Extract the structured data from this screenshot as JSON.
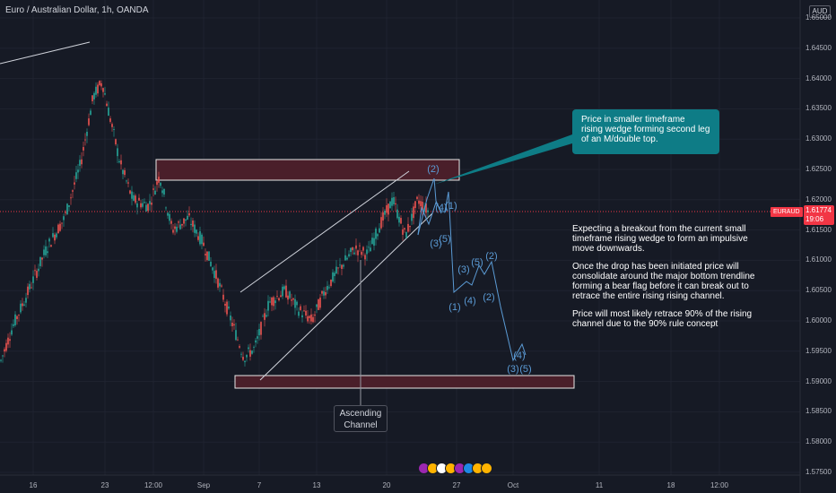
{
  "symbol_title": "Euro / Australian Dollar, 1h, OANDA",
  "currency": "AUD",
  "price_tag": {
    "symbol": "EURAUD",
    "price": "1.61774",
    "countdown": "19:06"
  },
  "y_axis": [
    "1.65000",
    "1.64500",
    "1.64000",
    "1.63500",
    "1.63000",
    "1.62500",
    "1.62000",
    "1.61500",
    "1.61000",
    "1.60500",
    "1.60000",
    "1.59500",
    "1.59000",
    "1.58500",
    "1.58000",
    "1.57500"
  ],
  "x_axis": [
    "16",
    "23",
    "12:00",
    "Sep",
    "7",
    "13",
    "20",
    "27",
    "Oct",
    "11",
    "18",
    "12:00"
  ],
  "callout": [
    "Price in smaller timeframe",
    "rising wedge forming second leg",
    "of an M/double top."
  ],
  "analysis": [
    [
      "Expecting a breakout from the current small",
      "timeframe rising wedge to form an impulsive",
      "move downwards."
    ],
    [
      "Once the drop has been initiated price will",
      "consolidate around the major bottom trendline",
      "forming a bear flag before it can break out to",
      "retrace the entire rising rising channel."
    ],
    [
      "Price will most likely retrace 90% of the rising",
      "channel due to the 90% rule concept"
    ]
  ],
  "channel_label": [
    "Ascending",
    "Channel"
  ],
  "wave_labels": [
    "(2)",
    "(4)",
    "(1)",
    "(3)",
    "(5)",
    "(3)",
    "(5)",
    "(2)",
    "(4)",
    "(1)",
    "(2)",
    "(4)",
    "(3)",
    "(5)"
  ],
  "colors": {
    "background": "#161a25",
    "candle_up": "#26a69a",
    "candle_down": "#ef5350",
    "zone_fill": "#4a1f2a",
    "callout": "#0e7c86",
    "projection": "#5b9bd5",
    "price_line": "#f23645"
  },
  "events": [
    "event-icon",
    "event-icon",
    "event-icon",
    "event-icon",
    "event-icon",
    "event-icon",
    "event-icon",
    "event-icon"
  ]
}
